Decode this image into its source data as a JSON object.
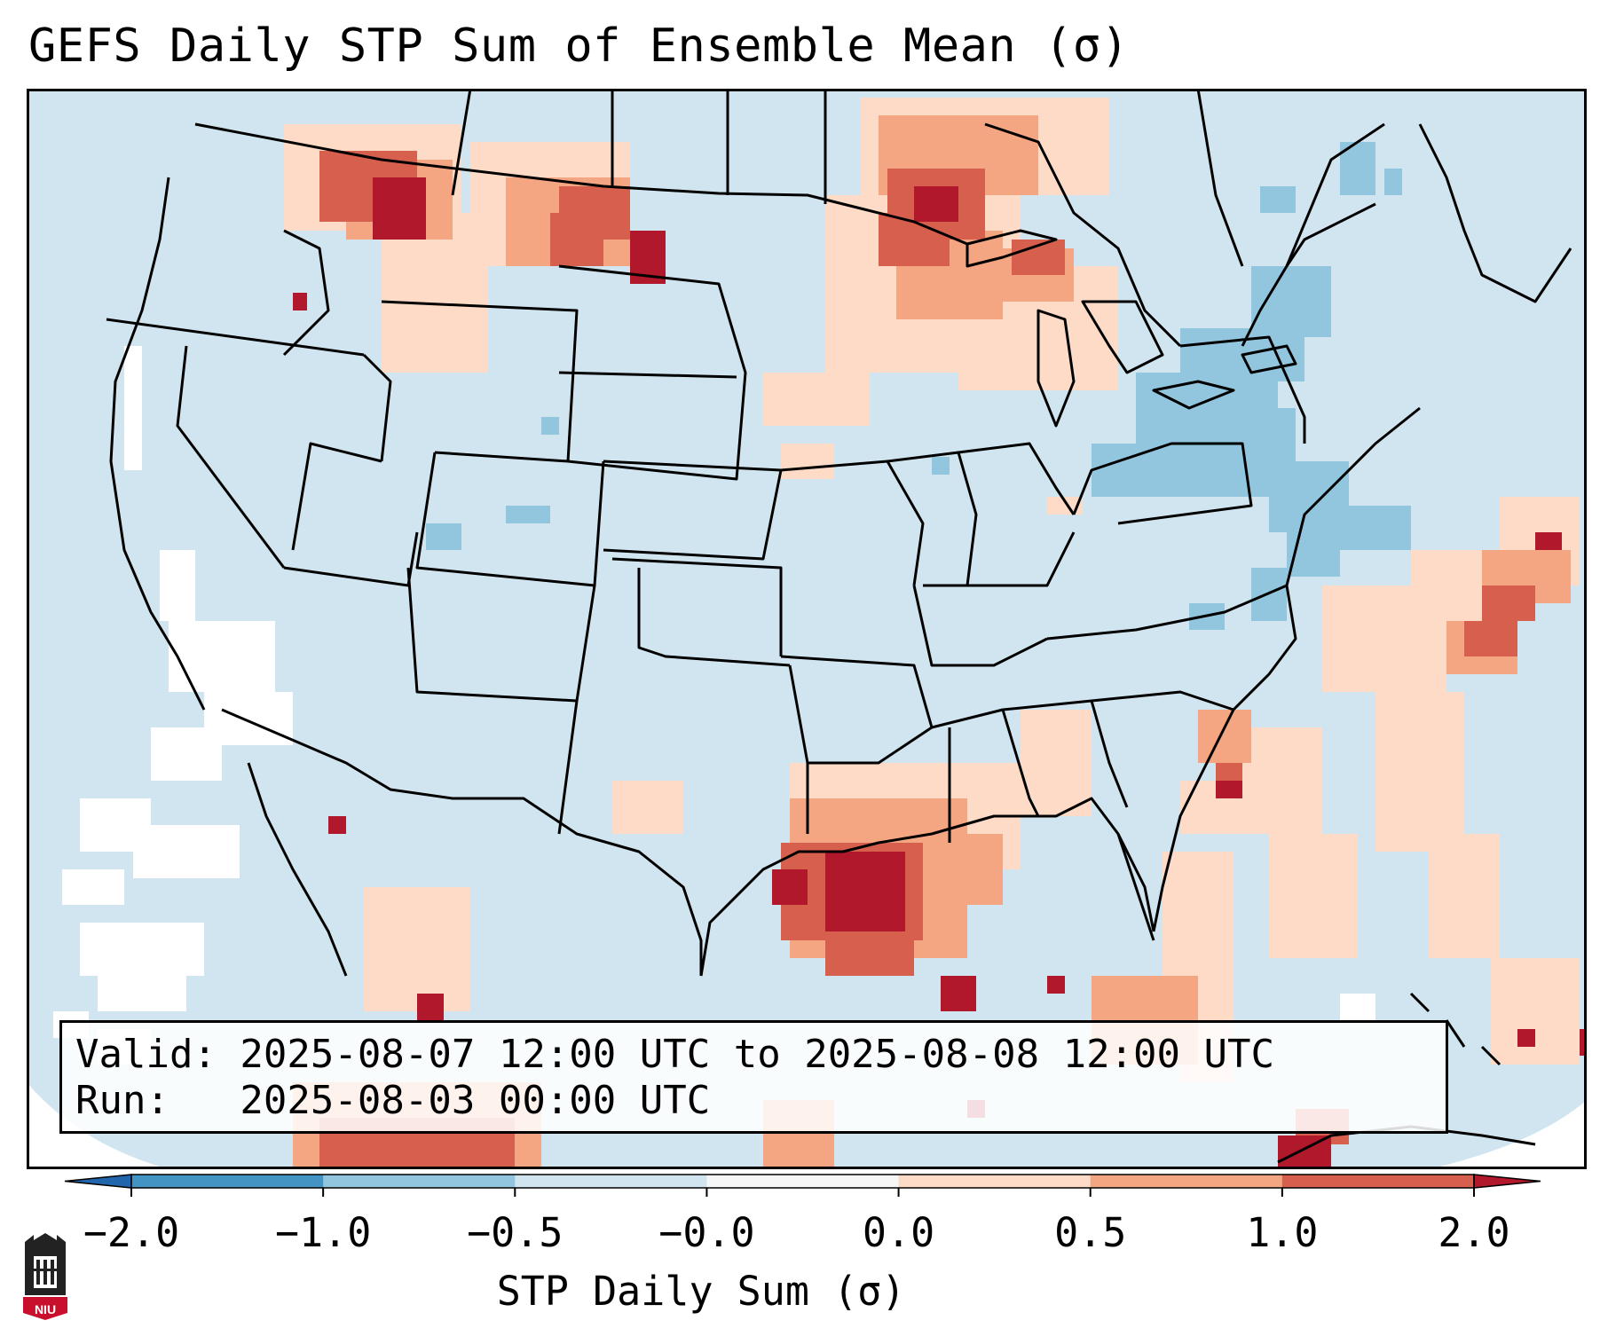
{
  "title": "GEFS Daily STP Sum of Ensemble Mean (σ)",
  "info": {
    "valid_line": "Valid: 2025-08-07 12:00 UTC to 2025-08-08 12:00 UTC",
    "run_line": "Run:   2025-08-03 00:00 UTC"
  },
  "colorbar": {
    "label": "STP Daily Sum (σ)",
    "ticks": [
      "−2.0",
      "−1.0",
      "−0.5",
      "−0.0",
      "0.0",
      "0.5",
      "1.0",
      "2.0"
    ],
    "colors": [
      "#4393c3",
      "#92c5de",
      "#d1e5f0",
      "#f7f7f7",
      "#fddbc7",
      "#f4a582",
      "#d6604d"
    ],
    "under_color": "#2166ac",
    "over_color": "#b2182b"
  },
  "map_colors": {
    "background": "#d1e5f0",
    "outside_projection": "#ffffff",
    "border_lines": "#000000"
  },
  "logo": {
    "text": "NIU",
    "color": "#c8102e"
  }
}
